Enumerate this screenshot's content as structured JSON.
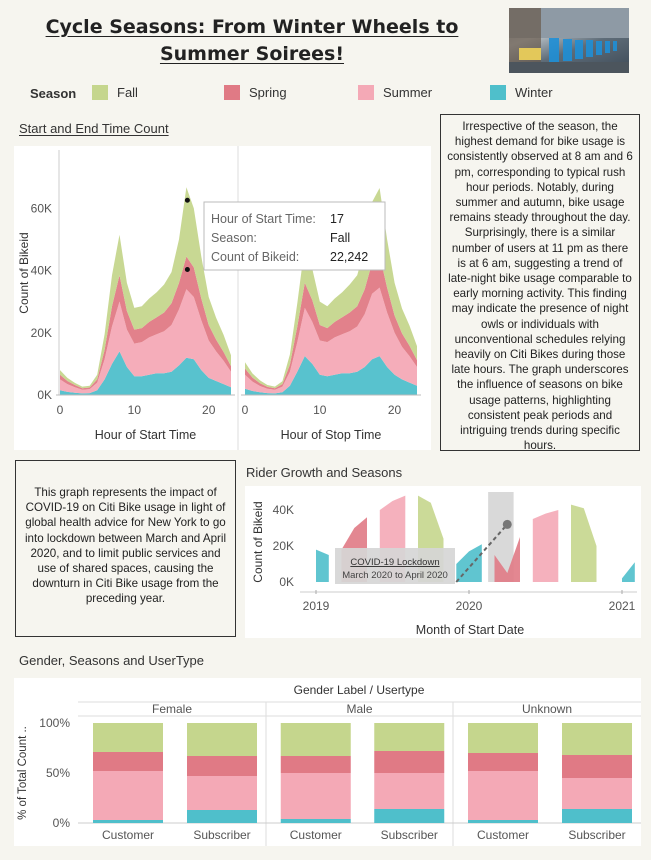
{
  "title": "Cycle Seasons: From Winter Wheels to Summer Soirees!",
  "legend": {
    "title": "Season",
    "items": [
      {
        "label": "Fall",
        "color": "#c5d68d"
      },
      {
        "label": "Spring",
        "color": "#e07a85"
      },
      {
        "label": "Summer",
        "color": "#f4a9b6"
      },
      {
        "label": "Winter",
        "color": "#4fbfcb"
      }
    ]
  },
  "time_section": {
    "title": "Start and End Time Count",
    "ylabel": "Count of Bikeid",
    "yticks": [
      "0K",
      "20K",
      "40K",
      "60K"
    ],
    "xticks": [
      "0",
      "10",
      "20"
    ],
    "xlabel_start": "Hour of Start Time",
    "xlabel_stop": "Hour of Stop Time"
  },
  "tooltip": {
    "rows": [
      {
        "key": "Hour of Start Time:",
        "value": "17"
      },
      {
        "key": "Season:",
        "value": "Fall"
      },
      {
        "key": "Count of Bikeid:",
        "value": "22,242"
      }
    ]
  },
  "right_note": "Irrespective of the season, the highest demand for bike usage is consistently observed at 8 am and 6 pm, corresponding to typical rush hour periods. Notably, during summer and autumn, bike usage remains steady throughout the day. Surprisingly, there is a similar number of users at 11 pm as there is at 6 am, suggesting a trend of late-night bike usage comparable to early morning activity. This finding may indicate the presence of night owls or individuals with unconventional schedules relying heavily on Citi Bikes during those late hours. The graph underscores the influence of seasons on bike usage patterns, highlighting consistent peak periods and intriguing trends during specific hours.",
  "left_note": "This graph represents the impact of COVID-19 on Citi Bike usage in light of global health advice for New York to go into lockdown between March and April 2020, and to limit public services and use of shared spaces, causing the downturn in Citi Bike usage from the preceding year.",
  "growth_section": {
    "title": "Rider Growth and Seasons",
    "ylabel": "Count of Bikeid",
    "yticks": [
      "0K",
      "20K",
      "40K"
    ],
    "xticks": [
      "2019",
      "2020",
      "2021"
    ],
    "xlabel": "Month of Start Date",
    "annotation_title": "COVID-19 Lockdown",
    "annotation_sub": "March 2020 to April 2020"
  },
  "gender_section": {
    "title": "Gender, Seasons and UserType",
    "header": "Gender Label  /  Usertype",
    "ylabel": "% of Total Count ..",
    "yticks": [
      "0%",
      "50%",
      "100%"
    ],
    "groups": [
      "Female",
      "Male",
      "Unknown"
    ],
    "usertypes": [
      "Customer",
      "Subscriber"
    ]
  },
  "chart_data": [
    {
      "type": "area",
      "title": "Start and End Time Count",
      "xlabel": "Hour of Start Time",
      "ylabel": "Count of Bikeid",
      "stacked": true,
      "x": [
        0,
        1,
        2,
        3,
        4,
        5,
        6,
        7,
        8,
        9,
        10,
        11,
        12,
        13,
        14,
        15,
        16,
        17,
        18,
        19,
        20,
        21,
        22,
        23
      ],
      "ylim": [
        0,
        80000
      ],
      "series": [
        {
          "name": "Winter",
          "values": [
            1500,
            1000,
            700,
            500,
            600,
            1500,
            5000,
            10000,
            14000,
            9000,
            6000,
            6000,
            6500,
            7000,
            7000,
            7500,
            9500,
            12000,
            11500,
            8000,
            5500,
            4500,
            3500,
            2500
          ]
        },
        {
          "name": "Summer",
          "values": [
            3500,
            2500,
            1800,
            1200,
            1300,
            2500,
            6500,
            12000,
            16000,
            12000,
            10500,
            11000,
            12000,
            12500,
            13500,
            15000,
            18000,
            22000,
            20000,
            16000,
            12000,
            9500,
            7500,
            5000
          ]
        },
        {
          "name": "Spring",
          "values": [
            1500,
            1000,
            700,
            500,
            500,
            1000,
            3000,
            6500,
            8500,
            6000,
            4500,
            4500,
            5000,
            5500,
            6000,
            7000,
            8500,
            10500,
            9500,
            7000,
            5000,
            3800,
            2800,
            1800
          ]
        },
        {
          "name": "Fall",
          "values": [
            1500,
            1000,
            700,
            500,
            600,
            1500,
            5000,
            10000,
            13000,
            9000,
            7000,
            7000,
            7500,
            8000,
            9000,
            10000,
            14000,
            22242,
            19000,
            13500,
            9000,
            7000,
            5500,
            3500
          ]
        }
      ]
    },
    {
      "type": "area",
      "title": "Start and End Time Count",
      "xlabel": "Hour of Stop Time",
      "ylabel": "Count of Bikeid",
      "stacked": true,
      "x": [
        0,
        1,
        2,
        3,
        4,
        5,
        6,
        7,
        8,
        9,
        10,
        11,
        12,
        13,
        14,
        15,
        16,
        17,
        18,
        19,
        20,
        21,
        22,
        23
      ],
      "ylim": [
        0,
        80000
      ],
      "series": [
        {
          "name": "Winter",
          "values": [
            2000,
            1300,
            900,
            600,
            500,
            900,
            3000,
            7500,
            12500,
            10000,
            6500,
            6000,
            6500,
            7000,
            7000,
            7500,
            9000,
            11500,
            12500,
            9000,
            6500,
            5000,
            4000,
            3000
          ]
        },
        {
          "name": "Summer",
          "values": [
            4500,
            3000,
            2000,
            1400,
            1200,
            1800,
            4500,
            9500,
            15500,
            13500,
            11000,
            11000,
            12000,
            12500,
            13500,
            14500,
            17000,
            21000,
            22000,
            17500,
            13500,
            10500,
            8500,
            6000
          ]
        },
        {
          "name": "Spring",
          "values": [
            2000,
            1300,
            900,
            600,
            500,
            800,
            2200,
            5000,
            8000,
            7000,
            5000,
            4500,
            5000,
            5500,
            6000,
            6500,
            8000,
            10000,
            10500,
            8000,
            5500,
            4300,
            3300,
            2200
          ]
        },
        {
          "name": "Fall",
          "values": [
            2000,
            1300,
            900,
            600,
            500,
            900,
            3300,
            7500,
            12000,
            10000,
            7500,
            7000,
            7500,
            8000,
            9000,
            10000,
            13000,
            19500,
            21500,
            15500,
            10500,
            8000,
            6500,
            4500
          ]
        }
      ]
    },
    {
      "type": "area",
      "title": "Rider Growth and Seasons",
      "xlabel": "Month of Start Date",
      "ylabel": "Count of Bikeid",
      "x_range": [
        "2018-12",
        "2021-02"
      ],
      "ylim": [
        0,
        50000
      ],
      "series": [
        {
          "name": "Winter",
          "points": [
            [
              "2019-01",
              18000
            ],
            [
              "2019-02",
              15000
            ]
          ]
        },
        {
          "name": "Spring",
          "points": [
            [
              "2019-03",
              18000
            ],
            [
              "2019-04",
              30000
            ],
            [
              "2019-05",
              36000
            ]
          ]
        },
        {
          "name": "Summer",
          "points": [
            [
              "2019-06",
              40000
            ],
            [
              "2019-07",
              45000
            ],
            [
              "2019-08",
              48000
            ]
          ]
        },
        {
          "name": "Fall",
          "points": [
            [
              "2019-09",
              48000
            ],
            [
              "2019-10",
              44000
            ],
            [
              "2019-11",
              24000
            ]
          ]
        },
        {
          "name": "Winter",
          "points": [
            [
              "2019-12",
              10000
            ],
            [
              "2020-01",
              17000
            ],
            [
              "2020-02",
              21000
            ]
          ]
        },
        {
          "name": "Spring",
          "points": [
            [
              "2020-03",
              15000
            ],
            [
              "2020-04",
              5000
            ],
            [
              "2020-05",
              25000
            ]
          ]
        },
        {
          "name": "Summer",
          "points": [
            [
              "2020-06",
              35000
            ],
            [
              "2020-07",
              38000
            ],
            [
              "2020-08",
              40000
            ]
          ]
        },
        {
          "name": "Fall",
          "points": [
            [
              "2020-09",
              43000
            ],
            [
              "2020-10",
              41000
            ],
            [
              "2020-11",
              20000
            ]
          ]
        },
        {
          "name": "Winter",
          "points": [
            [
              "2021-01",
              2000
            ],
            [
              "2021-02",
              11000
            ]
          ]
        }
      ],
      "trend_points": [
        [
          "2019-12",
          0
        ],
        [
          "2020-04",
          32000
        ]
      ]
    },
    {
      "type": "bar",
      "stacked": true,
      "title": "Gender, Seasons and UserType",
      "ylabel": "% of Total Count ..",
      "ylim": [
        0,
        100
      ],
      "categories": [
        "Female Customer",
        "Female Subscriber",
        "Male Customer",
        "Male Subscriber",
        "Unknown Customer",
        "Unknown Subscriber"
      ],
      "series": [
        {
          "name": "Winter",
          "values": [
            3,
            13,
            4,
            14,
            3,
            14
          ]
        },
        {
          "name": "Summer",
          "values": [
            49,
            34,
            46,
            36,
            49,
            31
          ]
        },
        {
          "name": "Spring",
          "values": [
            19,
            20,
            17,
            22,
            18,
            23
          ]
        },
        {
          "name": "Fall",
          "values": [
            29,
            33,
            33,
            28,
            30,
            32
          ]
        }
      ]
    }
  ]
}
